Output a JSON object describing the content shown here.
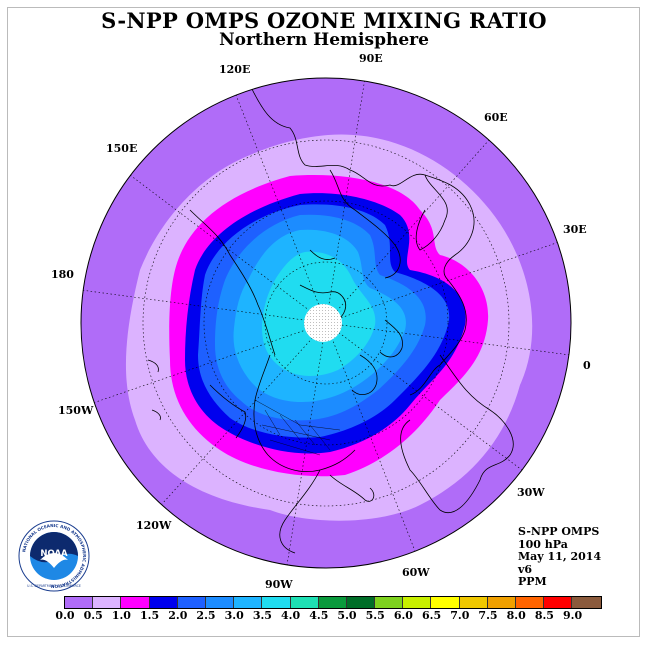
{
  "title": "S-NPP OMPS OZONE MIXING RATIO",
  "subtitle": "Northern Hemisphere",
  "longitude_labels": [
    "90E",
    "60E",
    "30E",
    "0",
    "30W",
    "60W",
    "90W",
    "120W",
    "150W",
    "180",
    "150E",
    "120E"
  ],
  "info": {
    "line1": "S-NPP OMPS",
    "line2": "100 hPa",
    "line3": "May 11, 2014",
    "line4": "v6",
    "line5": "PPM"
  },
  "logo": {
    "acronym": "NOAA",
    "ring_text": "NATIONAL OCEANIC AND ATMOSPHERIC ADMINISTRATION",
    "bottom_text": "U.S. DEPARTMENT OF COMMERCE"
  },
  "colorbar": {
    "ticks": [
      "0.0",
      "0.5",
      "1.0",
      "1.5",
      "2.0",
      "2.5",
      "3.0",
      "3.5",
      "4.0",
      "4.5",
      "5.0",
      "5.5",
      "6.0",
      "6.5",
      "7.0",
      "7.5",
      "8.0",
      "8.5",
      "9.0"
    ],
    "colors": [
      "#b06cf8",
      "#dcb3ff",
      "#ff00ff",
      "#0000ee",
      "#1e60ff",
      "#1c8cff",
      "#1eb4ff",
      "#20dcf0",
      "#1ee0b4",
      "#0a9a3c",
      "#006e28",
      "#7ed21e",
      "#c8f000",
      "#ffff00",
      "#f0c800",
      "#f0a000",
      "#ff6400",
      "#ff0000",
      "#8b5a3c"
    ]
  },
  "map_colors": {
    "band_0_0": "#b06cf8",
    "band_0_5": "#dcb3ff",
    "band_1_0": "#ff00ff",
    "band_1_5": "#0000ee",
    "band_2_0": "#1e60ff",
    "band_2_5": "#1c8cff",
    "band_3_0": "#1eb4ff",
    "band_3_5": "#20dcf0",
    "no_data": "#ffffff"
  }
}
